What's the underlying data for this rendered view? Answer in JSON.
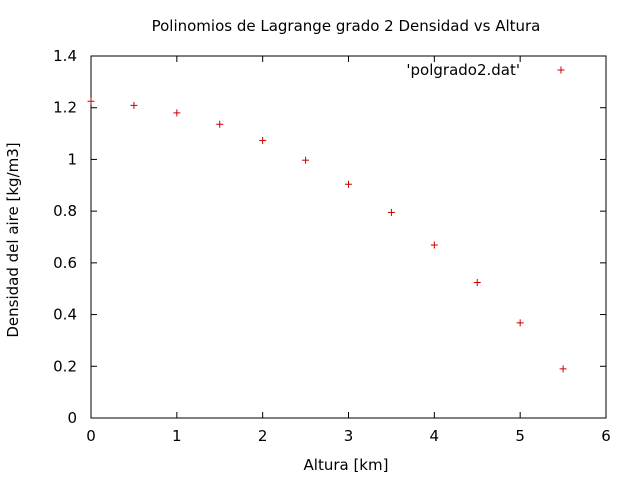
{
  "chart_data": {
    "type": "scatter",
    "title": "Polinomios de Lagrange grado 2 Densidad vs Altura",
    "xlabel": "Altura [km]",
    "ylabel": "Densidad del aire [kg/m3]",
    "xlim": [
      0,
      6
    ],
    "ylim": [
      0,
      1.4
    ],
    "xticks": [
      "0",
      "1",
      "2",
      "3",
      "4",
      "5",
      "6"
    ],
    "yticks": [
      "0",
      "0.2",
      "0.4",
      "0.6",
      "0.8",
      "1",
      "1.2",
      "1.4"
    ],
    "grid": false,
    "legend_position": "top-right",
    "series": [
      {
        "name": "'polgrado2.dat'",
        "color": "#cc0000",
        "marker": "plus",
        "x": [
          0,
          0.5,
          1,
          1.5,
          2,
          2.5,
          3,
          3.5,
          4,
          4.5,
          5,
          5.5
        ],
        "y": [
          1.225,
          1.209,
          1.18,
          1.136,
          1.073,
          0.997,
          0.904,
          0.795,
          0.669,
          0.524,
          0.368,
          0.19
        ]
      }
    ]
  }
}
